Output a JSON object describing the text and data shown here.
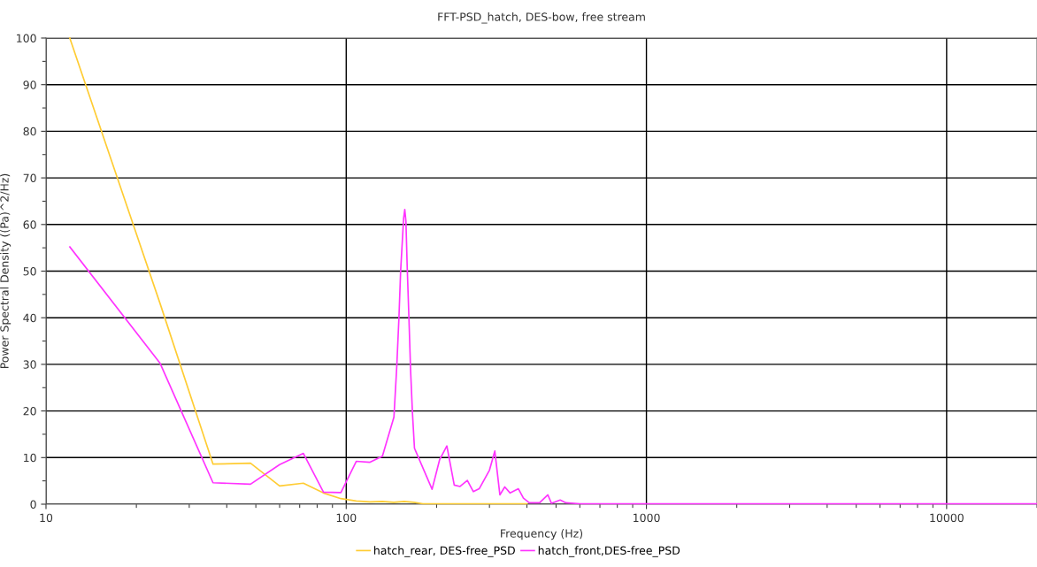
{
  "chart_data": {
    "type": "line",
    "title": "FFT-PSD_hatch, DES-bow, free stream",
    "xlabel": "Frequency (Hz)",
    "ylabel": "Power Spectral Density ((Pa)^2/Hz)",
    "log": "x",
    "xlim": [
      10,
      20000
    ],
    "xticks": [
      10,
      100,
      1000,
      10000
    ],
    "ylim": [
      0,
      100
    ],
    "yticks": [
      0,
      10,
      20,
      30,
      40,
      50,
      60,
      70,
      80,
      90,
      100
    ],
    "grid": true,
    "legend": "bottom",
    "marker": "none",
    "line_style": "solid",
    "series": [
      {
        "name": "hatch_rear, DES-free_PSD",
        "color": "#ffcc33",
        "x": [
          12,
          24,
          36,
          48,
          60,
          72,
          84,
          96,
          108,
          120,
          132,
          144,
          156,
          168,
          180,
          240,
          400
        ],
        "values": [
          100,
          43,
          8.6,
          8.8,
          3.9,
          4.5,
          2.4,
          1.2,
          0.7,
          0.5,
          0.6,
          0.4,
          0.6,
          0.4,
          0.1,
          0.1,
          0.1
        ]
      },
      {
        "name": "hatch_front,DES-free_PSD",
        "color": "#ff33ff",
        "x": [
          12,
          24,
          36,
          48,
          60,
          72,
          84,
          96,
          108,
          120,
          132,
          144.2,
          147.4,
          149.8,
          151.8,
          155.3,
          156.7,
          158.1,
          159.6,
          161.8,
          163.9,
          166.2,
          168.8,
          193.2,
          204.6,
          216.4,
          229,
          239.4,
          253.2,
          265.2,
          277.3,
          300,
          312.6,
          325,
          337.4,
          351.6,
          374.6,
          389.3,
          407.3,
          440.6,
          469.6,
          482.5,
          516.2,
          539.6,
          600,
          1000,
          5000,
          20000
        ],
        "values": [
          55.2,
          30.2,
          4.6,
          4.3,
          8.5,
          10.9,
          2.6,
          2.5,
          9.2,
          9.0,
          10.3,
          18.7,
          29.7,
          39.8,
          50.0,
          61.3,
          63.2,
          60.7,
          51.2,
          39.8,
          28.5,
          19.6,
          12.0,
          3.2,
          9.5,
          12.5,
          4.1,
          3.8,
          5.1,
          2.7,
          3.3,
          7.3,
          11.4,
          2.0,
          3.7,
          2.4,
          3.3,
          1.3,
          0.3,
          0.3,
          2.0,
          0.2,
          0.9,
          0.3,
          0.1,
          0.1,
          0.1,
          0.1
        ]
      }
    ]
  }
}
